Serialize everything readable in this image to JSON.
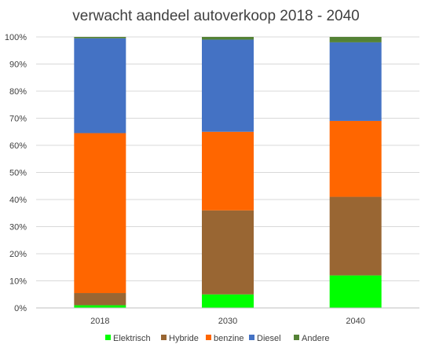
{
  "chart_data": {
    "type": "bar",
    "stacked": true,
    "title": "verwacht aandeel autoverkoop 2018 - 2040",
    "xlabel": "",
    "ylabel": "",
    "categories": [
      "2018",
      "2030",
      "2040"
    ],
    "series": [
      {
        "name": "Elektrisch",
        "color": "#00FF00",
        "values": [
          1,
          5,
          12
        ]
      },
      {
        "name": "Hybride",
        "color": "#996633",
        "values": [
          4.5,
          31,
          29
        ]
      },
      {
        "name": "benzine",
        "color": "#FF6600",
        "values": [
          59,
          29,
          28
        ]
      },
      {
        "name": "Diesel",
        "color": "#4472C4",
        "values": [
          35,
          34,
          29
        ]
      },
      {
        "name": "Andere",
        "color": "#548235",
        "values": [
          0.5,
          1,
          2
        ]
      }
    ],
    "ylim": [
      0,
      100
    ],
    "yticks": [
      "0%",
      "10%",
      "20%",
      "30%",
      "40%",
      "50%",
      "60%",
      "70%",
      "80%",
      "90%",
      "100%"
    ],
    "grid": true,
    "legend_position": "bottom"
  }
}
